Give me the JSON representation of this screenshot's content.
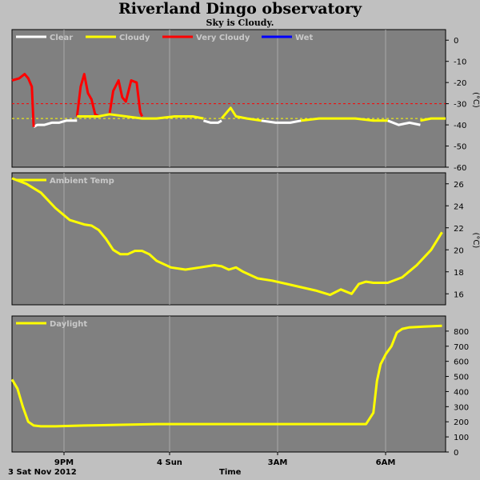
{
  "header": {
    "title": "Riverland Dingo observatory",
    "subtitle": "Sky is Cloudy."
  },
  "footer": {
    "date_label": "3 Sat Nov 2012",
    "time_label": "Time"
  },
  "colors": {
    "panel_bg": "#808080",
    "page_bg": "#c0c0c0",
    "clear": "#ffffff",
    "cloudy": "#ffff00",
    "very_cloudy": "#ff0000",
    "wet": "#0000ff"
  },
  "chart_data": [
    {
      "type": "line",
      "title": "",
      "ylabel": "(°C)",
      "ylim": [
        -60,
        5
      ],
      "yticks": [
        0,
        -10,
        -20,
        -30,
        -40,
        -50,
        -60
      ],
      "xlim": [
        0,
        12
      ],
      "reference_lines": [
        {
          "y": -30,
          "color": "#ff0000",
          "style": "dashed"
        },
        {
          "y": -37,
          "color": "#ffff00",
          "style": "dashed"
        }
      ],
      "legend": [
        "Clear",
        "Cloudy",
        "Very Cloudy",
        "Wet"
      ],
      "series": [
        {
          "name": "Clear",
          "color": "#ffffff",
          "x": [
            0.6,
            0.7,
            0.9,
            1.1,
            1.3,
            1.5,
            1.75,
            1.8
          ],
          "y": [
            -41,
            -40,
            -40,
            -39,
            -39,
            -38,
            -38,
            -38
          ]
        },
        {
          "name": "Clear",
          "color": "#ffffff",
          "x": [
            5.3,
            5.5,
            5.7,
            5.8
          ],
          "y": [
            -38,
            -39,
            -39,
            -38
          ]
        },
        {
          "name": "Clear",
          "color": "#ffffff",
          "x": [
            6.9,
            7.3,
            7.7,
            8.0
          ],
          "y": [
            -38,
            -39,
            -39,
            -38
          ]
        },
        {
          "name": "Clear",
          "color": "#ffffff",
          "x": [
            10.4,
            10.7,
            11.0,
            11.3
          ],
          "y": [
            -38,
            -40,
            -39,
            -40
          ]
        },
        {
          "name": "Very Cloudy",
          "color": "#ff0000",
          "x": [
            0.0,
            0.2,
            0.35,
            0.45,
            0.55,
            0.6
          ],
          "y": [
            -19,
            -18,
            -16,
            -18,
            -22,
            -41
          ]
        },
        {
          "name": "Very Cloudy",
          "color": "#ff0000",
          "x": [
            1.8,
            1.9,
            2.0,
            2.1,
            2.2,
            2.3,
            2.4
          ],
          "y": [
            -36,
            -22,
            -16,
            -25,
            -28,
            -35,
            -36
          ]
        },
        {
          "name": "Very Cloudy",
          "color": "#ff0000",
          "x": [
            2.7,
            2.8,
            2.95,
            3.05,
            3.15,
            3.3,
            3.45,
            3.55,
            3.6
          ],
          "y": [
            -35,
            -24,
            -19,
            -27,
            -29,
            -19,
            -20,
            -34,
            -36
          ]
        },
        {
          "name": "Cloudy",
          "color": "#ffff00",
          "x": [
            1.8,
            2.4,
            2.7,
            3.6,
            4.0,
            4.5,
            5.0,
            5.3
          ],
          "y": [
            -36,
            -36,
            -35,
            -37,
            -37,
            -36,
            -36,
            -37
          ]
        },
        {
          "name": "Cloudy",
          "color": "#ffff00",
          "x": [
            5.8,
            5.95,
            6.05,
            6.2,
            6.5,
            6.9
          ],
          "y": [
            -37,
            -34,
            -32,
            -36,
            -37,
            -38
          ]
        },
        {
          "name": "Cloudy",
          "color": "#ffff00",
          "x": [
            8.0,
            8.5,
            9.0,
            9.5,
            10.0,
            10.4
          ],
          "y": [
            -38,
            -37,
            -37,
            -37,
            -38,
            -38
          ]
        },
        {
          "name": "Cloudy",
          "color": "#ffff00",
          "x": [
            11.3,
            11.6,
            11.9,
            12.0
          ],
          "y": [
            -38,
            -37,
            -37,
            -37
          ]
        }
      ]
    },
    {
      "type": "line",
      "title": "",
      "ylabel": "(°C)",
      "ylim": [
        15,
        27
      ],
      "yticks": [
        16,
        18,
        20,
        22,
        24,
        26
      ],
      "xlim": [
        0,
        12
      ],
      "legend": [
        "Ambient Temp"
      ],
      "series": [
        {
          "name": "Ambient Temp",
          "color": "#ffff00",
          "x": [
            0.0,
            0.4,
            0.8,
            1.2,
            1.6,
            2.0,
            2.2,
            2.4,
            2.6,
            2.8,
            3.0,
            3.2,
            3.4,
            3.6,
            3.8,
            4.0,
            4.4,
            4.8,
            5.2,
            5.6,
            5.8,
            6.0,
            6.2,
            6.4,
            6.8,
            7.2,
            7.6,
            8.0,
            8.4,
            8.8,
            9.1,
            9.4,
            9.6,
            9.8,
            10.0,
            10.4,
            10.8,
            11.2,
            11.6,
            11.9
          ],
          "y": [
            26.5,
            26.0,
            25.2,
            23.8,
            22.7,
            22.3,
            22.2,
            21.8,
            21.0,
            20.0,
            19.6,
            19.6,
            19.9,
            19.9,
            19.6,
            19.0,
            18.4,
            18.2,
            18.4,
            18.6,
            18.5,
            18.2,
            18.4,
            18.0,
            17.4,
            17.2,
            16.9,
            16.6,
            16.3,
            15.9,
            16.4,
            16.0,
            16.9,
            17.1,
            17.0,
            17.0,
            17.5,
            18.6,
            20.0,
            21.6
          ]
        }
      ]
    },
    {
      "type": "line",
      "title": "",
      "ylabel": "",
      "ylim": [
        0,
        900
      ],
      "yticks": [
        0,
        100,
        200,
        300,
        400,
        500,
        600,
        700,
        800
      ],
      "xlim": [
        0,
        12
      ],
      "xticks": [
        {
          "x": 1.5,
          "label": "9PM"
        },
        {
          "x": 4.5,
          "label": "4 Sun"
        },
        {
          "x": 7.5,
          "label": "3AM"
        },
        {
          "x": 10.5,
          "label": "6AM"
        }
      ],
      "legend": [
        "Daylight"
      ],
      "series": [
        {
          "name": "Daylight",
          "color": "#ffff00",
          "x": [
            0.0,
            0.15,
            0.3,
            0.45,
            0.6,
            0.8,
            1.2,
            2.0,
            3.0,
            4.0,
            5.0,
            6.0,
            7.0,
            8.0,
            9.0,
            9.8,
            10.0,
            10.1,
            10.2,
            10.35,
            10.5,
            10.65,
            10.8,
            11.0,
            11.4,
            11.9
          ],
          "y": [
            480,
            420,
            300,
            200,
            175,
            170,
            170,
            175,
            180,
            185,
            185,
            185,
            185,
            185,
            185,
            185,
            260,
            470,
            580,
            650,
            700,
            790,
            815,
            825,
            830,
            835
          ]
        }
      ]
    }
  ]
}
